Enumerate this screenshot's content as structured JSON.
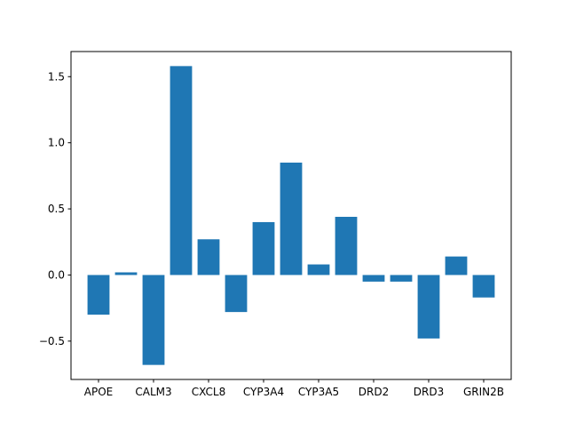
{
  "chart_data": {
    "type": "bar",
    "title": "",
    "xlabel": "",
    "ylabel": "",
    "categories": [
      "APOE",
      "",
      "CALM3",
      "",
      "CXCL8",
      "",
      "CYP3A4",
      "",
      "CYP3A5",
      "",
      "DRD2",
      "",
      "DRD3",
      "",
      "GRIN2B"
    ],
    "values": [
      -0.3,
      0.02,
      -0.68,
      1.58,
      0.27,
      -0.28,
      0.4,
      0.85,
      0.08,
      0.44,
      -0.05,
      -0.05,
      -0.48,
      0.14,
      -0.17
    ],
    "tick_labels": [
      "APOE",
      "CALM3",
      "CXCL8",
      "CYP3A4",
      "CYP3A5",
      "DRD2",
      "DRD3",
      "GRIN2B"
    ],
    "yticks": [
      -0.5,
      0.0,
      0.5,
      1.0,
      1.5
    ],
    "ytick_labels": [
      "−0.5",
      "0.0",
      "0.5",
      "1.0",
      "1.5"
    ],
    "ylim": [
      -0.79,
      1.69
    ],
    "bar_color": "#1f77b4",
    "grid": false,
    "legend": "none"
  }
}
